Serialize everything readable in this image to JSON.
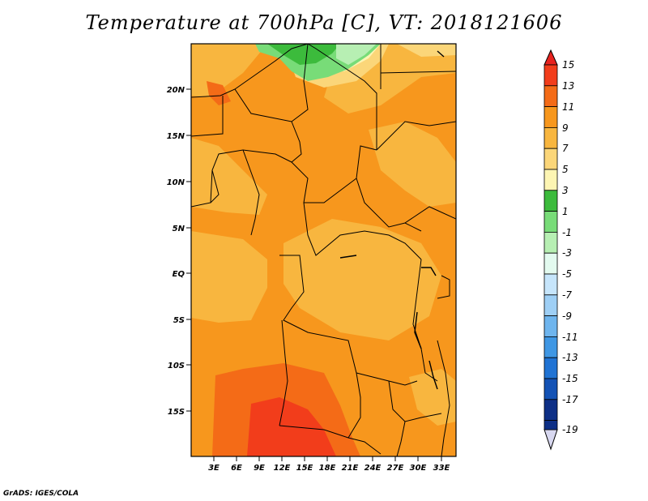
{
  "title": "Temperature at 700hPa [C], VT: 2018121606",
  "credit": "GrADS: IGES/COLA",
  "map": {
    "lat_labels": [
      "20N",
      "15N",
      "10N",
      "5N",
      "EQ",
      "5S",
      "10S",
      "15S"
    ],
    "lon_labels": [
      "3E",
      "6E",
      "9E",
      "12E",
      "15E",
      "18E",
      "21E",
      "24E",
      "27E",
      "30E",
      "33E"
    ]
  },
  "colorbar": {
    "labels": [
      "15",
      "13",
      "11",
      "9",
      "7",
      "5",
      "3",
      "1",
      "-1",
      "-3",
      "-5",
      "-7",
      "-9",
      "-11",
      "-13",
      "-15",
      "-17",
      "-19"
    ],
    "colors": {
      "gt15": "#e8231f",
      "13_15": "#f23d1b",
      "11_13": "#f46b17",
      "9_11": "#f7971d",
      "7_9": "#f8b63f",
      "5_7": "#fbd679",
      "3_5": "#fdf5b3",
      "1_3": "#3cbb3c",
      "m1_1": "#78dc78",
      "m3_m1": "#b7efb3",
      "m5_m3": "#e3faef",
      "m7_m5": "#c6e5fb",
      "m9_m7": "#9ecff5",
      "m11_m9": "#6eb5ee",
      "m13_m11": "#3f97e4",
      "m15_m13": "#2073d4",
      "m17_m15": "#1352b5",
      "m19_m17": "#0d2f86",
      "lt_m19": "#d8d8f0"
    }
  }
}
